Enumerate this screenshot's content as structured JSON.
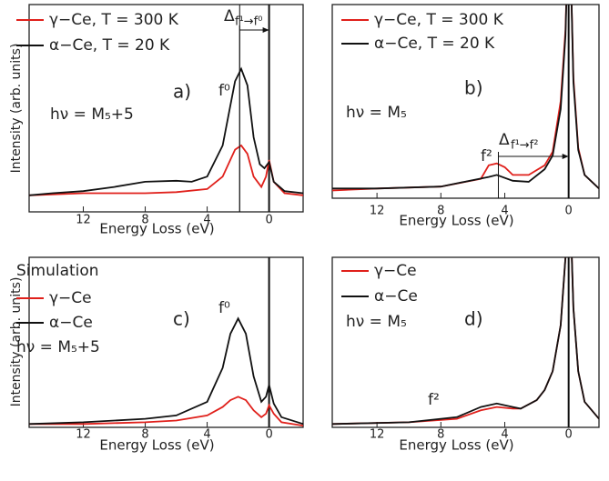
{
  "chart_data": [
    {
      "type": "line",
      "x_label": "Energy Loss (eV)",
      "y_label": "Intensity (arb. units)",
      "panel_label": "a)",
      "annotations": [
        "f⁰",
        "hν = M₅+5",
        "Δ",
        "f¹→f⁰"
      ],
      "xlim": [
        15.5,
        -2.2
      ],
      "xticks": [
        12,
        8,
        4,
        0
      ],
      "ylim": [
        0,
        1
      ],
      "vlines": [
        1.9,
        0
      ],
      "arrow": [
        1.9,
        0
      ],
      "series": [
        {
          "name": "γ−Ce, T = 300 K",
          "color": "#e0201b",
          "x": [
            15.5,
            12,
            8,
            6,
            4,
            3,
            2.2,
            1.8,
            1.4,
            1,
            0.5,
            0.2,
            0,
            -0.3,
            -1,
            -2.2
          ],
          "values": [
            0.08,
            0.09,
            0.09,
            0.095,
            0.11,
            0.17,
            0.3,
            0.32,
            0.28,
            0.17,
            0.12,
            0.17,
            0.25,
            0.145,
            0.09,
            0.08
          ]
        },
        {
          "name": "α−Ce, T = 20 K",
          "color": "#111111",
          "x": [
            15.5,
            14,
            12,
            10,
            8,
            6,
            5,
            4,
            3,
            2.2,
            1.8,
            1.4,
            1,
            0.6,
            0.3,
            0,
            -0.3,
            -1,
            -2.2
          ],
          "values": [
            0.08,
            0.09,
            0.1,
            0.12,
            0.145,
            0.15,
            0.145,
            0.17,
            0.32,
            0.63,
            0.69,
            0.61,
            0.36,
            0.23,
            0.21,
            0.24,
            0.145,
            0.1,
            0.09
          ]
        }
      ]
    },
    {
      "type": "line",
      "x_label": "Energy Loss (eV)",
      "panel_label": "b)",
      "annotations": [
        "hν = M₅",
        "f²",
        "Δ",
        "f¹→f²"
      ],
      "xlim": [
        14.8,
        -1.9
      ],
      "xticks": [
        12,
        8,
        4,
        0
      ],
      "ylim": [
        0,
        1
      ],
      "vlines": [
        0
      ],
      "arrow": [
        4.4,
        0
      ],
      "series": [
        {
          "name": "γ−Ce, T = 300 K",
          "color": "#e0201b",
          "x": [
            14.8,
            12,
            8,
            5.5,
            5,
            4.5,
            4,
            3.5,
            2.5,
            1.5,
            1,
            0.5,
            0.2,
            0.05,
            -0.1,
            -0.3,
            -0.6,
            -1,
            -1.9
          ],
          "values": [
            0.04,
            0.05,
            0.06,
            0.1,
            0.17,
            0.18,
            0.16,
            0.12,
            0.12,
            0.17,
            0.24,
            0.5,
            0.87,
            1.3,
            1.3,
            0.62,
            0.26,
            0.12,
            0.05
          ]
        },
        {
          "name": "α−Ce, T = 20 K",
          "color": "#111111",
          "x": [
            14.8,
            12,
            8,
            5,
            4.5,
            3.5,
            2.5,
            1.5,
            1,
            0.5,
            0.2,
            0.05,
            -0.1,
            -0.3,
            -0.6,
            -1,
            -1.9
          ],
          "values": [
            0.05,
            0.05,
            0.06,
            0.11,
            0.12,
            0.09,
            0.085,
            0.15,
            0.22,
            0.46,
            0.84,
            1.3,
            1.3,
            0.6,
            0.25,
            0.12,
            0.05
          ]
        }
      ]
    },
    {
      "type": "line",
      "x_label": "Energy Loss (eV)",
      "y_label": "Intensity (arb. units)",
      "panel_label": "c)",
      "annotations": [
        "Simulation",
        "f⁰",
        "hν = M₅+5"
      ],
      "xlim": [
        15.5,
        -2.2
      ],
      "xticks": [
        12,
        8,
        4,
        0
      ],
      "ylim": [
        0,
        1
      ],
      "vlines": [
        0
      ],
      "series": [
        {
          "name": "γ−Ce",
          "color": "#e0201b",
          "x": [
            15.5,
            12,
            8,
            6,
            4,
            3,
            2.5,
            2,
            1.5,
            1,
            0.5,
            0.2,
            0,
            -0.3,
            -0.8,
            -2.2
          ],
          "values": [
            0.02,
            0.02,
            0.03,
            0.04,
            0.07,
            0.12,
            0.16,
            0.18,
            0.16,
            0.1,
            0.06,
            0.08,
            0.13,
            0.08,
            0.03,
            0.01
          ]
        },
        {
          "name": "α−Ce",
          "color": "#111111",
          "x": [
            15.5,
            12,
            8,
            6,
            4,
            3,
            2.5,
            2,
            1.5,
            1,
            0.5,
            0.2,
            0,
            -0.3,
            -0.8,
            -2.2
          ],
          "values": [
            0.02,
            0.03,
            0.05,
            0.07,
            0.15,
            0.35,
            0.55,
            0.64,
            0.55,
            0.3,
            0.15,
            0.18,
            0.25,
            0.14,
            0.06,
            0.02
          ]
        }
      ]
    },
    {
      "type": "line",
      "x_label": "Energy Loss (eV)",
      "panel_label": "d)",
      "annotations": [
        "hν = M₅",
        "f²"
      ],
      "xlim": [
        14.8,
        -1.9
      ],
      "xticks": [
        12,
        8,
        4,
        0
      ],
      "ylim": [
        0,
        1
      ],
      "vlines": [
        0
      ],
      "series": [
        {
          "name": "γ−Ce",
          "color": "#e0201b",
          "x": [
            14.8,
            10,
            7,
            5.5,
            4.5,
            3.5,
            3,
            2,
            1.5,
            1,
            0.5,
            0.2,
            0.05,
            -0.1,
            -0.3,
            -0.6,
            -1,
            -1.9
          ],
          "values": [
            0.02,
            0.03,
            0.05,
            0.1,
            0.12,
            0.11,
            0.11,
            0.16,
            0.22,
            0.33,
            0.6,
            1.0,
            1.3,
            1.3,
            0.7,
            0.33,
            0.15,
            0.05
          ]
        },
        {
          "name": "α−Ce",
          "color": "#111111",
          "x": [
            14.8,
            10,
            7,
            5.5,
            4.5,
            3.5,
            3,
            2,
            1.5,
            1,
            0.5,
            0.2,
            0.05,
            -0.1,
            -0.3,
            -0.6,
            -1,
            -1.9
          ],
          "values": [
            0.02,
            0.03,
            0.06,
            0.12,
            0.14,
            0.12,
            0.11,
            0.16,
            0.22,
            0.33,
            0.6,
            1.0,
            1.3,
            1.3,
            0.7,
            0.33,
            0.15,
            0.05
          ]
        }
      ]
    }
  ]
}
